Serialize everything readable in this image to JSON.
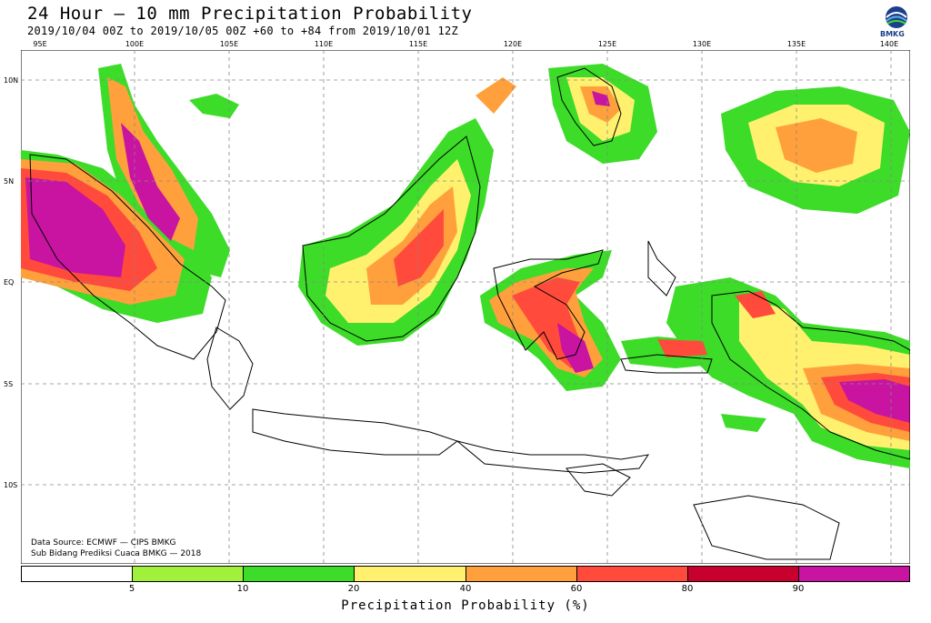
{
  "header": {
    "title": "24 Hour — 10 mm Precipitation Probability",
    "subtitle": "2019/10/04 00Z to 2019/10/05 00Z +60 to +84 from 2019/10/01 12Z"
  },
  "logo": {
    "icon": "bmkg-logo-icon",
    "text": "BMKG"
  },
  "longitude_labels": [
    "95E",
    "100E",
    "105E",
    "110E",
    "115E",
    "120E",
    "125E",
    "130E",
    "135E",
    "140E"
  ],
  "latitude_labels": [
    "10N",
    "5N",
    "EQ",
    "5S",
    "10S"
  ],
  "credits": {
    "line1": "Data Source: ECMWF — CIPS BMKG",
    "line2": "Sub Bidang Prediksi Cuaca BMKG — 2018"
  },
  "legend": {
    "title": "Precipitation Probability (%)",
    "colors": [
      "#ffffff",
      "#a0f03c",
      "#3cdc28",
      "#fff06e",
      "#ffa03c",
      "#ff4a3c",
      "#c8002d",
      "#c814a0"
    ],
    "ticks": [
      "5",
      "10",
      "20",
      "40",
      "60",
      "80",
      "90"
    ]
  },
  "map_colors": {
    "coast": "#000000",
    "pale": "#a0f03c",
    "green": "#3cdc28",
    "yellow": "#fff06e",
    "orange": "#ffa03c",
    "red": "#ff4a3c",
    "darkred": "#c8002d",
    "magenta": "#c814a0"
  }
}
